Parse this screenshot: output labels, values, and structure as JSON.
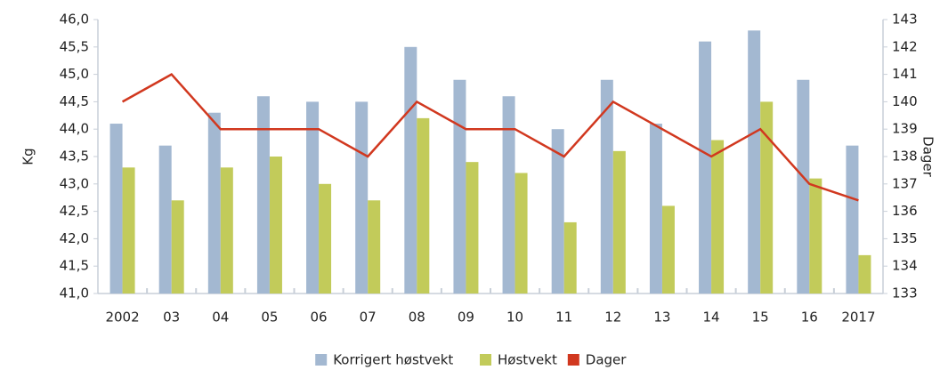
{
  "chart_data": {
    "type": "bar",
    "categories": [
      "2002",
      "03",
      "04",
      "05",
      "06",
      "07",
      "08",
      "09",
      "10",
      "11",
      "12",
      "13",
      "14",
      "15",
      "16",
      "2017"
    ],
    "series": [
      {
        "name": "Korrigert høstvekt",
        "color": "#a3b8d1",
        "values": [
          44.1,
          43.7,
          44.3,
          44.6,
          44.5,
          44.5,
          45.5,
          44.9,
          44.6,
          44.0,
          44.9,
          44.1,
          45.6,
          45.8,
          44.9,
          43.7
        ]
      },
      {
        "name": "Høstvekt",
        "color": "#c2cb5a",
        "values": [
          43.3,
          42.7,
          43.3,
          43.5,
          43.0,
          42.7,
          44.2,
          43.4,
          43.2,
          42.3,
          43.6,
          42.6,
          43.8,
          44.5,
          43.1,
          41.7
        ]
      },
      {
        "name": "Dager",
        "type": "line",
        "axis": "y2",
        "color": "#d1381f",
        "values": [
          140,
          141,
          139,
          139,
          139,
          138,
          140,
          139,
          139,
          138,
          140,
          139,
          138,
          139,
          137,
          136.4
        ]
      }
    ],
    "y_label": "Kg",
    "y2_label": "Dager",
    "ylim": [
      41,
      46
    ],
    "yticks": [
      {
        "value": 41,
        "label": "41,0"
      },
      {
        "value": 41.5,
        "label": "41,5"
      },
      {
        "value": 42,
        "label": "42,0"
      },
      {
        "value": 42.5,
        "label": "42,5"
      },
      {
        "value": 43,
        "label": "43,0"
      },
      {
        "value": 43.5,
        "label": "43,5"
      },
      {
        "value": 44,
        "label": "44,0"
      },
      {
        "value": 44.5,
        "label": "44,5"
      },
      {
        "value": 45,
        "label": "45,0"
      },
      {
        "value": 45.5,
        "label": "45,5"
      },
      {
        "value": 46,
        "label": "46,0"
      }
    ],
    "y2lim": [
      133,
      143
    ],
    "y2ticks": [
      133,
      134,
      135,
      136,
      137,
      138,
      139,
      140,
      141,
      142,
      143
    ],
    "legend": "bottom"
  }
}
